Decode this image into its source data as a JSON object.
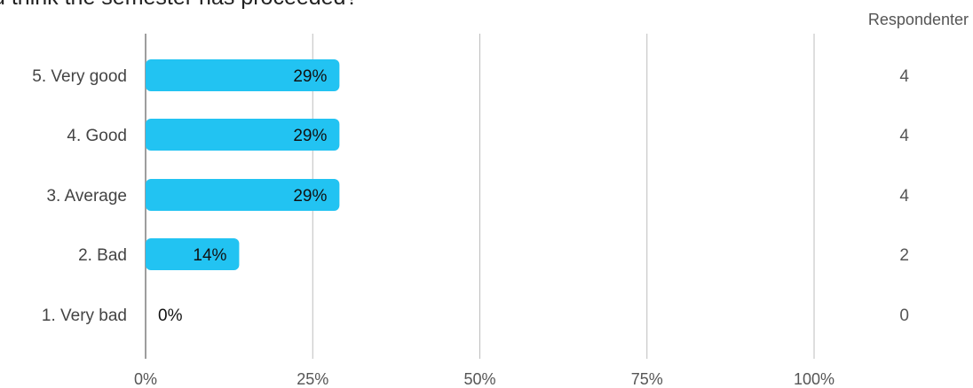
{
  "chart_data": {
    "type": "bar",
    "orientation": "horizontal",
    "title": "u think the semester has proceeded?",
    "categories": [
      "5. Very good",
      "4. Good",
      "3. Average",
      "2. Bad",
      "1. Very bad"
    ],
    "values": [
      29,
      29,
      29,
      14,
      0
    ],
    "value_labels": [
      "29%",
      "29%",
      "29%",
      "14%",
      "0%"
    ],
    "counts": [
      4,
      4,
      4,
      2,
      0
    ],
    "count_header": "Respondenter",
    "x_ticks": [
      "0%",
      "25%",
      "50%",
      "75%",
      "100%"
    ],
    "xlim": [
      0,
      100
    ],
    "grid": true,
    "bar_color": "#22c3f2"
  }
}
